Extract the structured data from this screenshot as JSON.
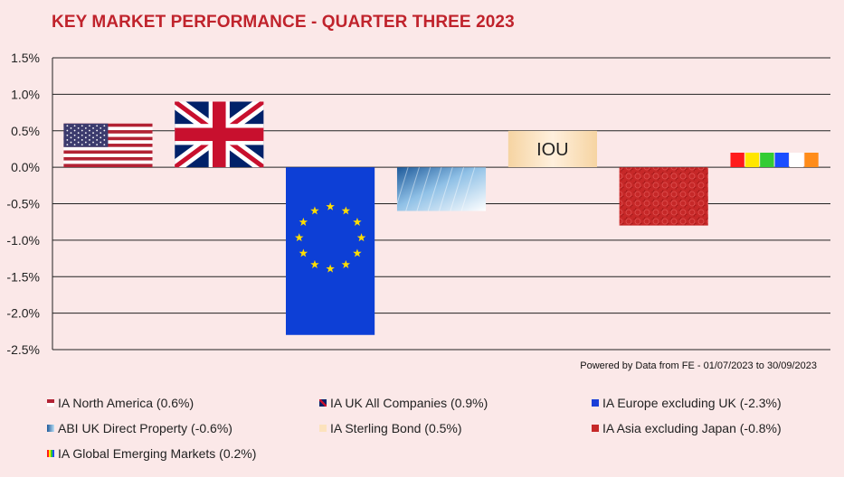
{
  "chart_data": {
    "type": "bar",
    "title": "KEY MARKET PERFORMANCE - QUARTER THREE 2023",
    "source_note": "Powered by Data from FE - 01/07/2023 to 30/09/2023",
    "ylim": [
      -2.5,
      1.5
    ],
    "yticks": [
      "1.5%",
      "1.0%",
      "0.5%",
      "0.0%",
      "-0.5%",
      "-1.0%",
      "-1.5%",
      "-2.0%",
      "-2.5%"
    ],
    "grid": true,
    "legend_position": "bottom",
    "categories": [
      "IA North America",
      "IA UK All Companies",
      "IA Europe excluding UK",
      "ABI UK Direct Property",
      "IA Sterling Bond",
      "IA Asia excluding Japan",
      "IA Global Emerging Markets"
    ],
    "values": [
      0.6,
      0.9,
      -2.3,
      -0.6,
      0.5,
      -0.8,
      0.2
    ],
    "bar_fills": [
      "us-flag",
      "uk-flag",
      "eu-flag",
      "building-photo",
      "iou-note",
      "red-pattern",
      "rainbow-blocks"
    ],
    "bar_text": [
      "",
      "",
      "",
      "",
      "IOU",
      "",
      ""
    ],
    "legend": [
      "IA North America (0.6%)",
      "IA UK All Companies (0.9%)",
      "IA Europe excluding UK (-2.3%)",
      "ABI UK Direct Property (-0.6%)",
      "IA Sterling Bond (0.5%)",
      "IA Asia excluding Japan (-0.8%)",
      "IA Global Emerging Markets (0.2%)"
    ],
    "colors": {
      "title": "#c0232c",
      "background": "#fbe8e8",
      "grid": "#222222",
      "us_red": "#b22234",
      "us_blue": "#3c3b6e",
      "uk_blue": "#012169",
      "uk_red": "#c8102e",
      "eu_blue": "#0d3fd6",
      "eu_star": "#ffdd00",
      "asia_red": "#c62828",
      "bond_fill": "#fce2bd"
    }
  }
}
